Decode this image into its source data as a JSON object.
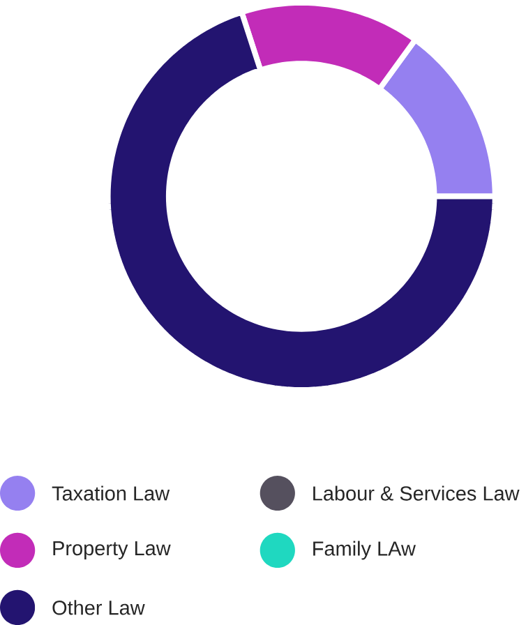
{
  "chart_data": {
    "type": "donut",
    "categories": [
      "Taxation Law",
      "Labour & Services Law",
      "Property Law",
      "Family LAw",
      "Other Law"
    ],
    "values": [
      15,
      0,
      15,
      0,
      70
    ],
    "colors": [
      "#9580f0",
      "#55505e",
      "#c22cb8",
      "#1fd8c0",
      "#231470"
    ],
    "legend": "bottom"
  }
}
